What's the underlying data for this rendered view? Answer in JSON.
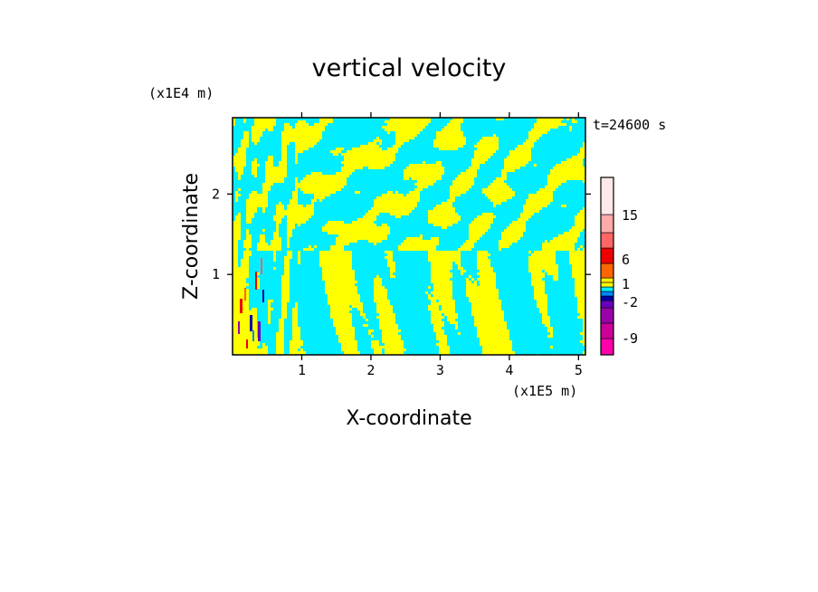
{
  "chart_data": {
    "type": "heatmap",
    "title": "vertical velocity",
    "xlabel": "X-coordinate",
    "ylabel": "Z-coordinate",
    "x_unit": "(x1E5 m)",
    "z_unit": "(x1E4 m)",
    "time_label": "t=24600 s",
    "x_ticks": [
      "1",
      "2",
      "3",
      "4",
      "5"
    ],
    "x_tick_values": [
      1,
      2,
      3,
      4,
      5
    ],
    "z_ticks": [
      "1",
      "2"
    ],
    "z_tick_values": [
      1,
      2
    ],
    "xlim": [
      0,
      5.1
    ],
    "zlim": [
      0,
      2.95
    ],
    "colorbar": {
      "colors": [
        "#ff00aa",
        "#cc0099",
        "#9900aa",
        "#6600bb",
        "#0000aa",
        "#0088ff",
        "#00eeff",
        "#ffff00",
        "#ffee00",
        "#ff6600",
        "#ee0000",
        "#ff6666",
        "#ffaaaa",
        "#ffe8e8"
      ],
      "tick_labels": [
        "15",
        "6",
        "1",
        "-2",
        "-9"
      ],
      "tick_levels": [
        15,
        6,
        1,
        -2,
        -9
      ]
    },
    "dominant_colors": {
      "positive": "#ffff00",
      "negative": "#00eeff"
    },
    "grid": false
  }
}
